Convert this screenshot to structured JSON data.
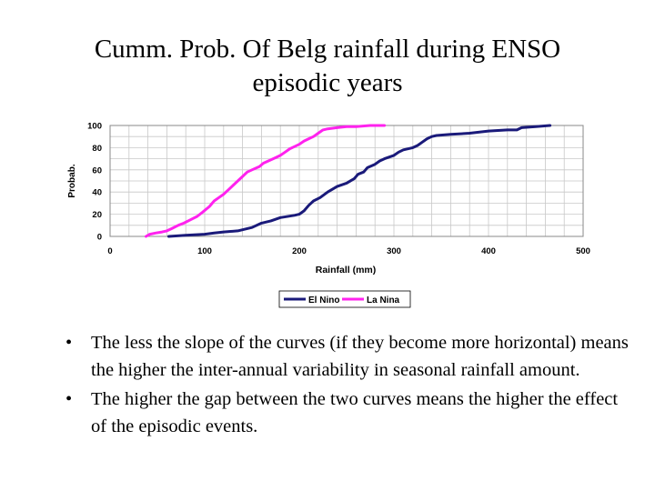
{
  "slide": {
    "title_line1": "Cumm. Prob. Of Belg rainfall during ENSO",
    "title_line2": "episodic years",
    "bullets": [
      "The less the slope of the curves (if they become more horizontal) means the higher the inter-annual variability in seasonal rainfall amount.",
      "The higher the gap between the two curves means the higher the effect of the episodic events."
    ]
  },
  "chart_data": {
    "type": "line",
    "title": "",
    "xlabel": "Rainfall (mm)",
    "ylabel": "Probab.",
    "xlim": [
      0,
      500
    ],
    "ylim": [
      0,
      100
    ],
    "xticks": [
      0,
      100,
      200,
      300,
      400,
      500
    ],
    "yticks": [
      0,
      20,
      40,
      60,
      80,
      100
    ],
    "grid": true,
    "legend_position": "bottom",
    "series": [
      {
        "name": "El Nino",
        "color": "#1a1a7a",
        "x": [
          62,
          80,
          100,
          110,
          120,
          135,
          150,
          160,
          170,
          180,
          195,
          200,
          205,
          210,
          215,
          222,
          230,
          240,
          250,
          258,
          262,
          268,
          272,
          280,
          285,
          290,
          300,
          305,
          310,
          320,
          325,
          330,
          335,
          340,
          345,
          360,
          380,
          400,
          420,
          430,
          435,
          450,
          465
        ],
        "values": [
          0,
          1,
          2,
          3,
          4,
          5,
          8,
          12,
          14,
          17,
          19,
          20,
          23,
          28,
          32,
          35,
          40,
          45,
          48,
          52,
          56,
          58,
          62,
          65,
          68,
          70,
          73,
          76,
          78,
          80,
          82,
          85,
          88,
          90,
          91,
          92,
          93,
          95,
          96,
          96,
          98,
          99,
          100
        ]
      },
      {
        "name": "La Nina",
        "color": "#ff22ee",
        "x": [
          38,
          42,
          48,
          55,
          60,
          65,
          72,
          78,
          85,
          92,
          98,
          105,
          110,
          115,
          120,
          125,
          130,
          135,
          140,
          145,
          150,
          158,
          162,
          170,
          175,
          180,
          185,
          190,
          195,
          200,
          205,
          210,
          215,
          220,
          225,
          230,
          240,
          250,
          260,
          275,
          290
        ],
        "values": [
          0,
          2,
          3,
          4,
          5,
          7,
          10,
          12,
          15,
          18,
          22,
          27,
          32,
          35,
          38,
          42,
          46,
          50,
          54,
          58,
          60,
          63,
          66,
          69,
          71,
          73,
          76,
          79,
          81,
          83,
          86,
          88,
          90,
          93,
          96,
          97,
          98,
          99,
          99,
          100,
          100
        ]
      }
    ]
  }
}
